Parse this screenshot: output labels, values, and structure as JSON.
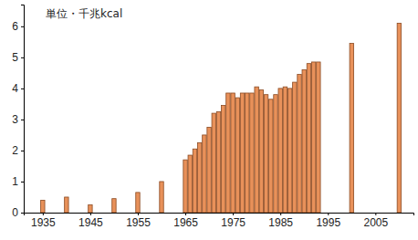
{
  "chart_data": {
    "type": "bar",
    "title": "単位・千兆kcal",
    "x": [
      1935,
      1940,
      1945,
      1950,
      1955,
      1960,
      1965,
      1966,
      1967,
      1968,
      1969,
      1970,
      1971,
      1972,
      1973,
      1974,
      1975,
      1976,
      1977,
      1978,
      1979,
      1980,
      1981,
      1982,
      1983,
      1984,
      1985,
      1986,
      1987,
      1988,
      1989,
      1990,
      1991,
      1992,
      1993,
      2000,
      2010
    ],
    "values": [
      0.4,
      0.5,
      0.25,
      0.45,
      0.65,
      1.0,
      1.7,
      1.85,
      2.05,
      2.25,
      2.5,
      2.75,
      3.2,
      3.25,
      3.45,
      3.85,
      3.85,
      3.7,
      3.85,
      3.85,
      3.85,
      4.05,
      3.95,
      3.8,
      3.65,
      3.8,
      4.0,
      4.05,
      4.0,
      4.2,
      4.45,
      4.6,
      4.8,
      4.85,
      4.85,
      5.45,
      6.1
    ],
    "color": "#e8915a",
    "xlim": [
      1931,
      2013
    ],
    "xticks": [
      1935,
      1945,
      1955,
      1965,
      1975,
      1985,
      1995,
      2005
    ],
    "ylim": [
      0,
      6.7
    ],
    "yticks": [
      0,
      1,
      2,
      3,
      4,
      5,
      6
    ],
    "grid": false
  }
}
